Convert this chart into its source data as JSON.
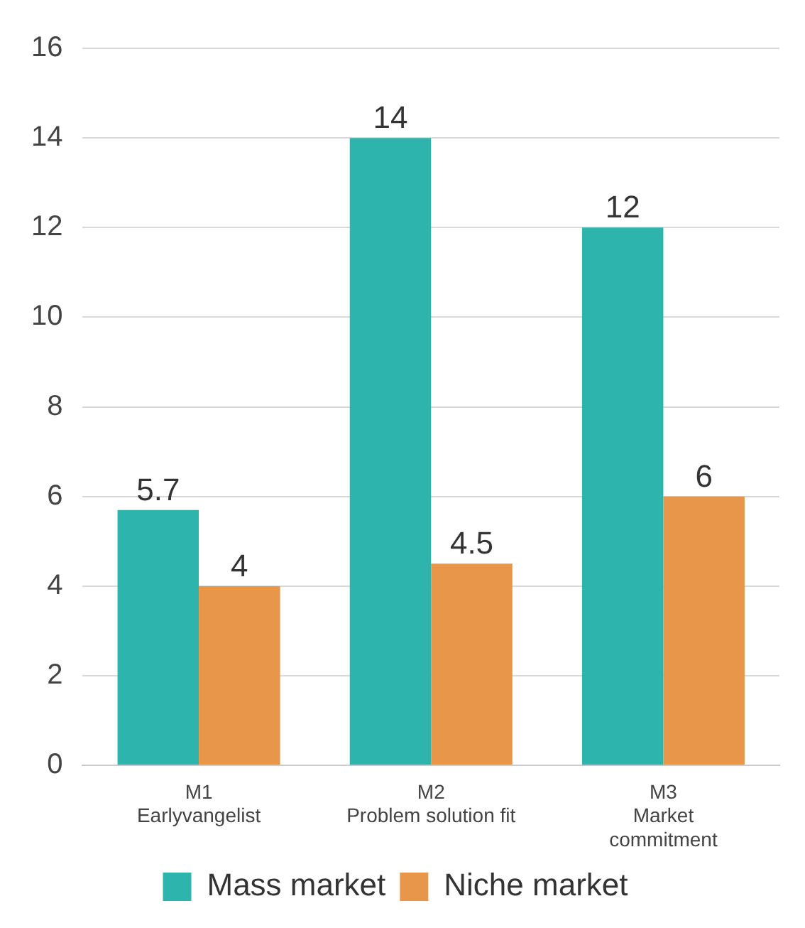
{
  "chart_data": {
    "type": "bar",
    "categories": [
      "M1\nEarlyvangelist",
      "M2\nProblem solution fit",
      "M3\nMarket\ncommitment"
    ],
    "series": [
      {
        "name": "Mass market",
        "color": "#2db5ad",
        "values": [
          5.7,
          14,
          12
        ]
      },
      {
        "name": "Niche market",
        "color": "#e8974a",
        "values": [
          4,
          4.5,
          6
        ]
      }
    ],
    "ylim": [
      0,
      16
    ],
    "yticks": [
      0,
      2,
      4,
      6,
      8,
      10,
      12,
      14,
      16
    ],
    "grid": "y",
    "legend": "bottom",
    "data_labels": true
  }
}
